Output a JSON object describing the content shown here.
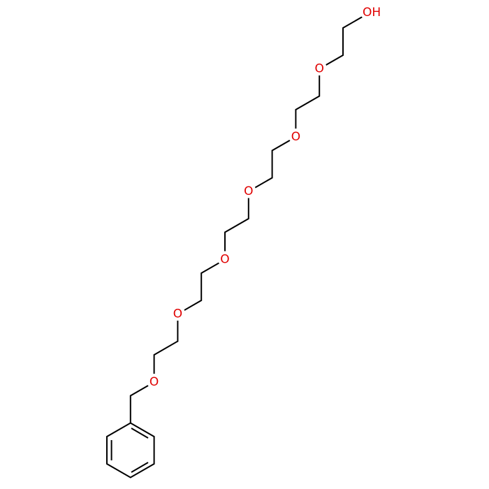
{
  "molecule": {
    "labels": [
      "OH",
      "O",
      "O",
      "O",
      "O",
      "O",
      "O"
    ]
  }
}
